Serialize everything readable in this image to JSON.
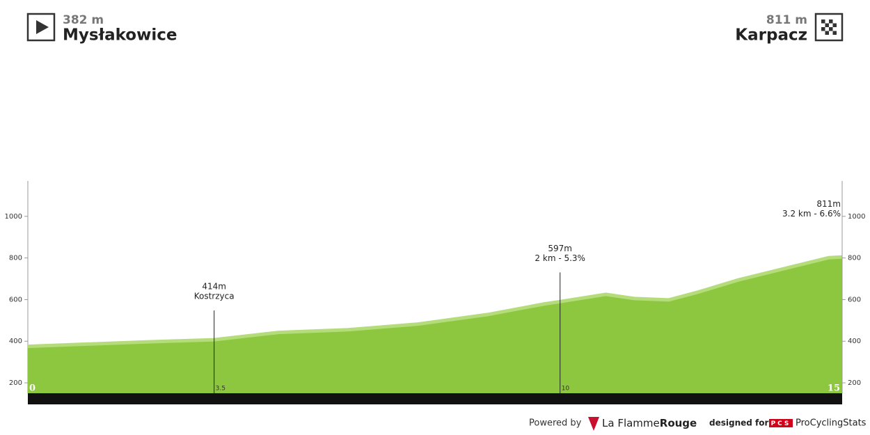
{
  "chart_data": {
    "type": "area",
    "start": {
      "elevation_label": "382 m",
      "name": "Mysłakowice"
    },
    "finish": {
      "elevation_label": "811 m",
      "name": "Karpacz"
    },
    "x": [
      0,
      2.09,
      3.5,
      4.71,
      6.02,
      7.33,
      8.64,
      9.69,
      10,
      10.86,
      11.39,
      12.04,
      12.57,
      13.35,
      14.14,
      15.05,
      15.3
    ],
    "series": [
      {
        "color": "#8dc63f",
        "values": [
          382,
          402,
          414,
          449,
          462,
          489,
          535,
          585,
          597,
          632,
          612,
          605,
          641,
          701,
          751,
          808,
          811
        ]
      }
    ],
    "xlim": [
      0,
      15.3
    ],
    "xticks": [
      0,
      3.5,
      10,
      {
        "value": 15.3,
        "label": "15"
      }
    ],
    "ylim": [
      150,
      1170
    ],
    "yticks": [
      200,
      400,
      600,
      800,
      1000
    ],
    "annotations": [
      {
        "x": 3.5,
        "elevation": 414,
        "elevation_label": "414m",
        "text": "Kostrzyca"
      },
      {
        "x": 10,
        "elevation": 597,
        "elevation_label": "597m",
        "text": "2 km - 5.3%"
      },
      {
        "x": 15.3,
        "elevation": 811,
        "elevation_label": "811m",
        "text": "3.2 km - 6.6%"
      }
    ]
  },
  "footer": {
    "powered_by": "Powered by",
    "brand_light": "La Flamme",
    "brand_bold": "Rouge",
    "designed_for": "designed for",
    "pcs": "PCS",
    "site": "ProCyclingStats"
  }
}
